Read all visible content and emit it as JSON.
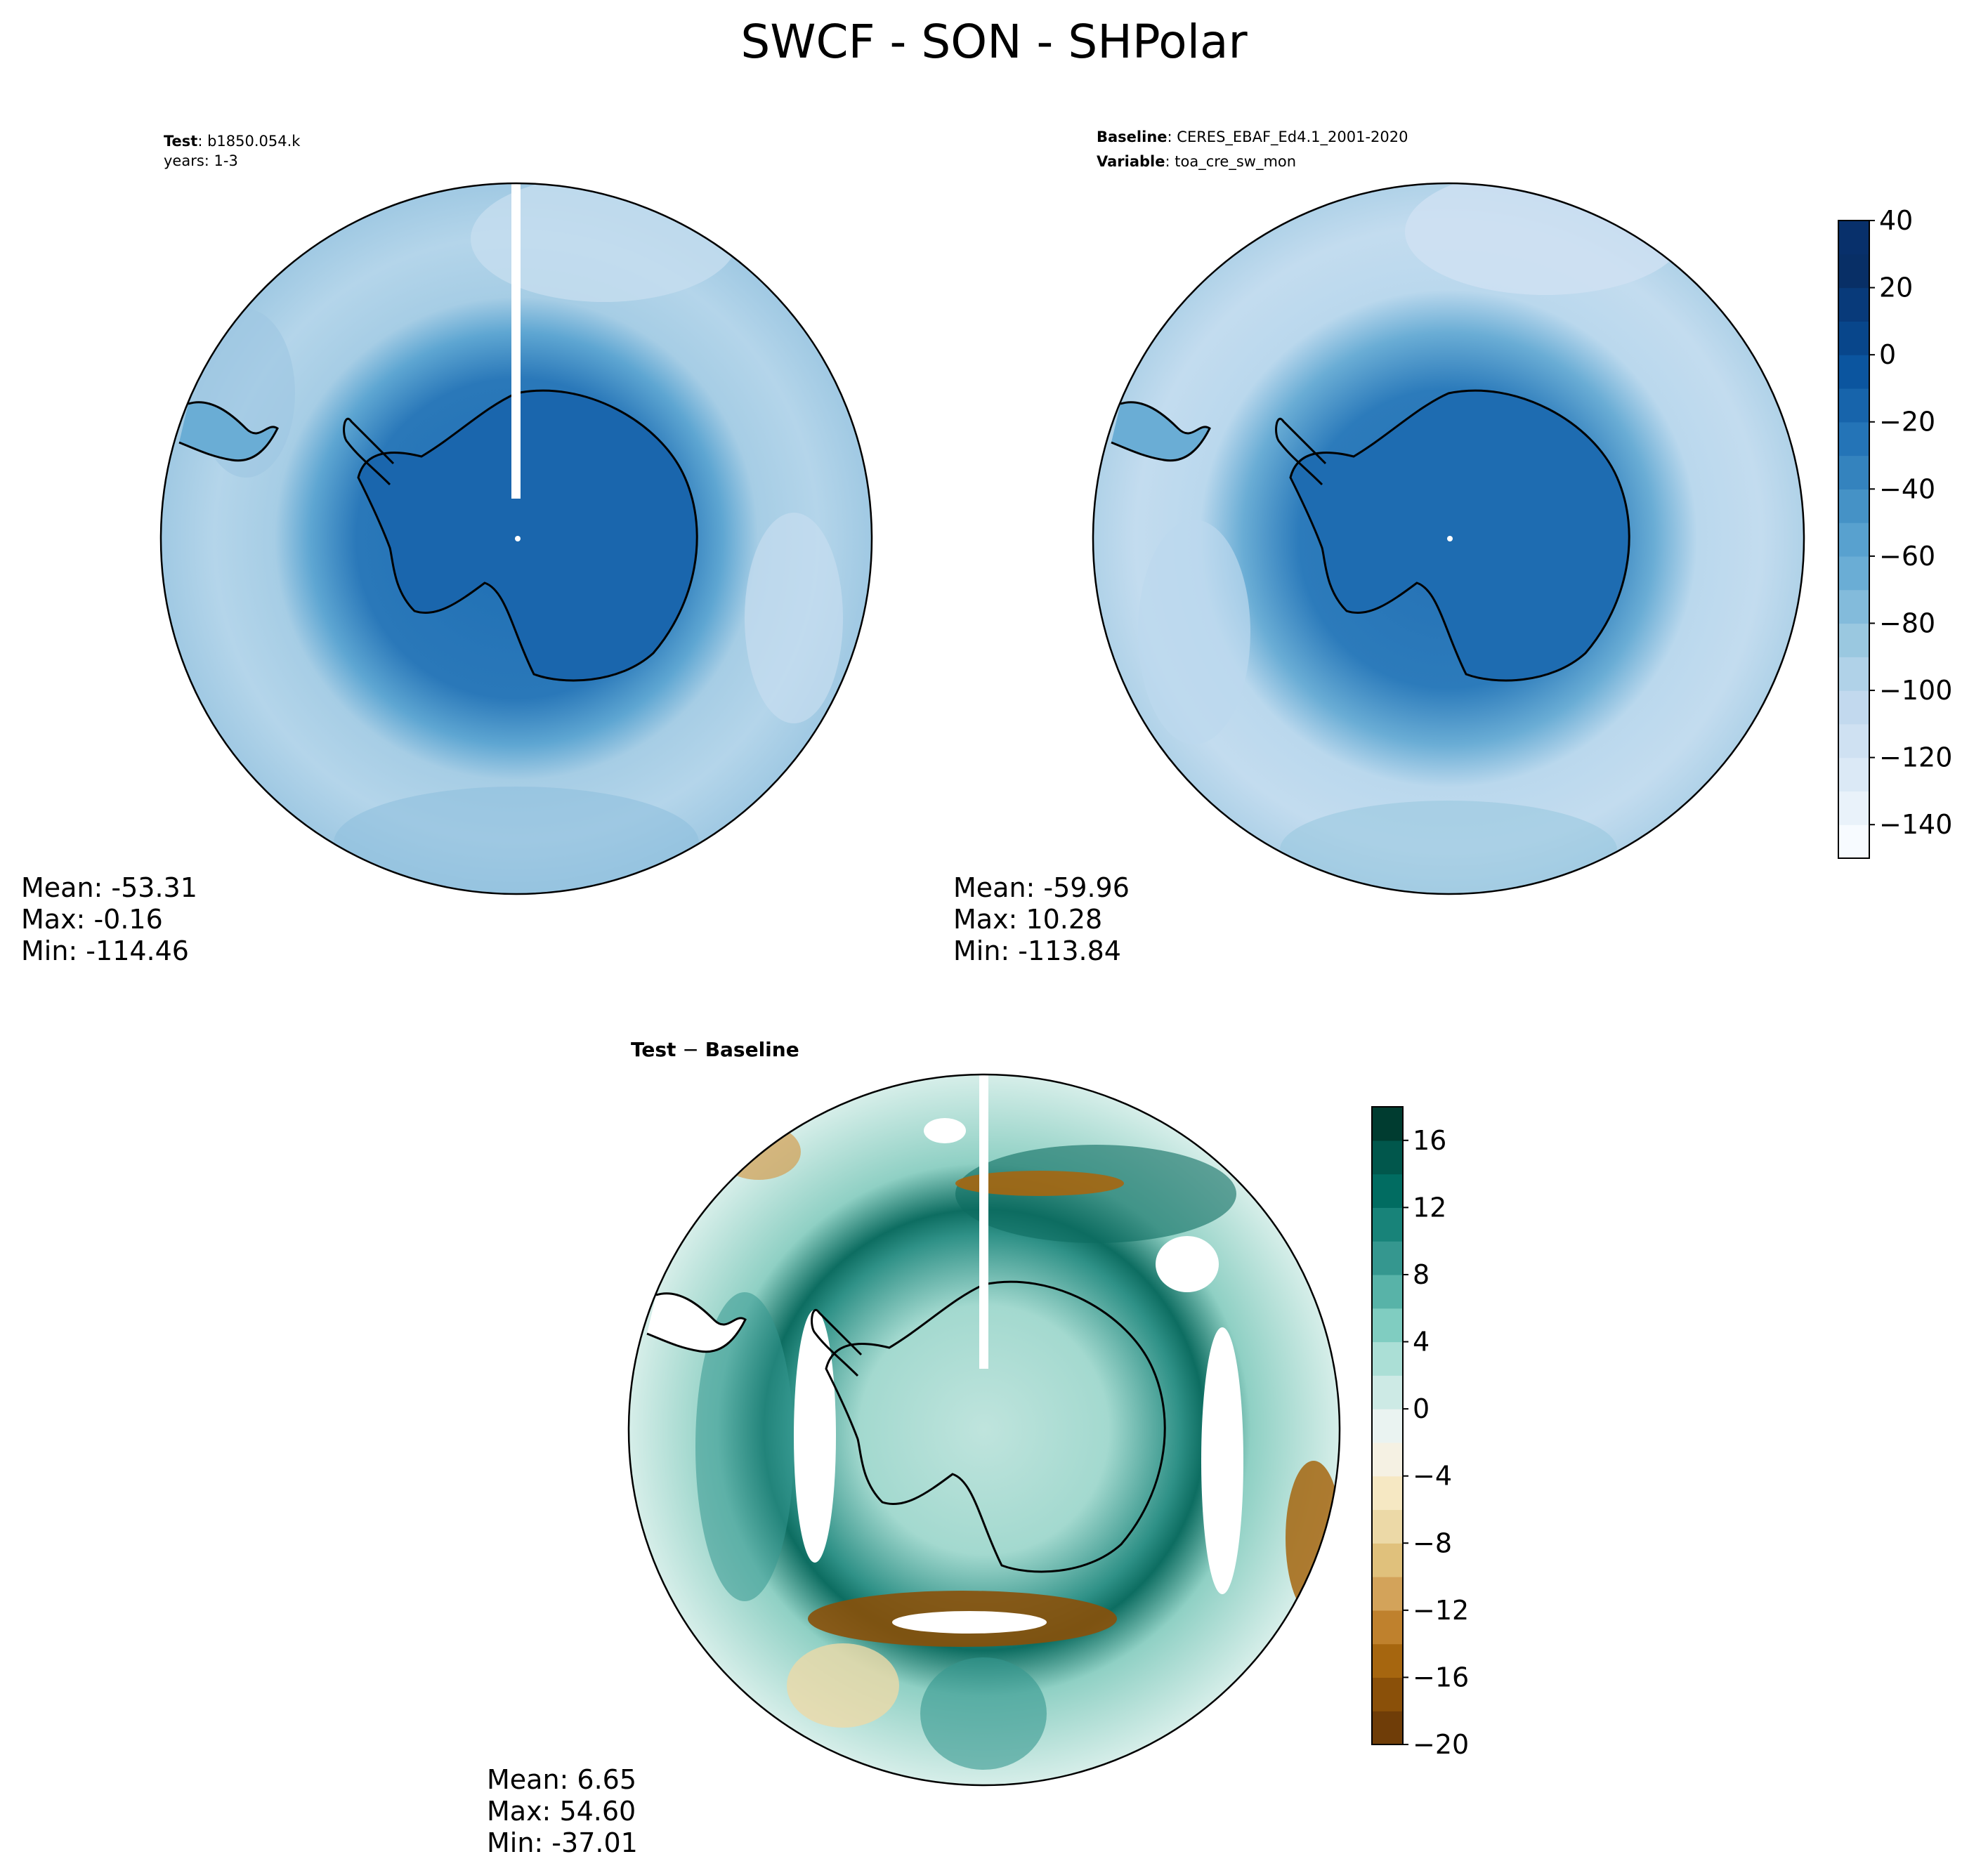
{
  "figure": {
    "title": "SWCF - SON - SHPolar"
  },
  "panels": {
    "test": {
      "label_bold": "Test",
      "label_sep": ": ",
      "name": "b1850.054.k",
      "years": "years: 1-3",
      "stats": {
        "mean": "Mean: -53.31",
        "max": "Max: -0.16",
        "min": "Min: -114.46"
      }
    },
    "baseline": {
      "label_bold": "Baseline",
      "label_sep": ": ",
      "name": "CERES_EBAF_Ed4.1_2001-2020",
      "var_bold": "Variable",
      "var_sep": ": ",
      "variable": "toa_cre_sw_mon",
      "stats": {
        "mean": "Mean: -59.96",
        "max": "Max: 10.28",
        "min": "Min: -113.84"
      }
    },
    "diff": {
      "label_a": "Test",
      "label_op": " − ",
      "label_b": "Baseline",
      "stats": {
        "mean": "Mean:  6.65",
        "max": "Max: 54.60",
        "min": "Min: -37.01"
      }
    }
  },
  "chart_data": [
    {
      "type": "heatmap",
      "projection": "south polar stereographic",
      "panel": "test",
      "colormap": "blues",
      "levels": [
        -150,
        -140,
        -130,
        -120,
        -110,
        -100,
        -90,
        -80,
        -70,
        -60,
        -50,
        -40,
        -30,
        -20,
        -10,
        0,
        10,
        20,
        30,
        40
      ],
      "regions": [
        {
          "region": "antarctic continent",
          "value": -10
        },
        {
          "region": "sea-ice ring",
          "value": -25
        },
        {
          "region": "southern ocean",
          "value": -70
        },
        {
          "region": "outer ocean",
          "value": -85
        }
      ]
    },
    {
      "type": "heatmap",
      "projection": "south polar stereographic",
      "panel": "baseline",
      "colormap": "blues",
      "levels": [
        -150,
        -140,
        -130,
        -120,
        -110,
        -100,
        -90,
        -80,
        -70,
        -60,
        -50,
        -40,
        -30,
        -20,
        -10,
        0,
        10,
        20,
        30,
        40
      ],
      "colorbar_ticks": [
        "40",
        "20",
        "0",
        "−20",
        "−40",
        "−60",
        "−80",
        "−100",
        "−120",
        "−140"
      ],
      "regions": [
        {
          "region": "antarctic continent",
          "value": -15
        },
        {
          "region": "sea-ice ring",
          "value": -30
        },
        {
          "region": "southern ocean",
          "value": -75
        },
        {
          "region": "outer ocean",
          "value": -90
        }
      ]
    },
    {
      "type": "heatmap",
      "projection": "south polar stereographic",
      "panel": "diff",
      "colormap": "brown-white-teal",
      "levels": [
        -20,
        -18,
        -16,
        -14,
        -12,
        -10,
        -8,
        -6,
        -4,
        -2,
        0,
        2,
        4,
        6,
        8,
        10,
        12,
        14,
        16,
        18
      ],
      "colorbar_ticks": [
        "16",
        "12",
        "8",
        "4",
        "0",
        "−4",
        "−8",
        "−12",
        "−16",
        "−20"
      ],
      "regions": [
        {
          "region": "antarctic continent",
          "value": 4
        },
        {
          "region": "sea-ice edge ring",
          "value": 16
        },
        {
          "region": "southern ocean",
          "value": 8
        },
        {
          "region": "negative bands",
          "value": -12
        }
      ]
    }
  ],
  "colors": {
    "blues": [
      "#f7fbff",
      "#e9f2fa",
      "#dbe9f6",
      "#cfe1f2",
      "#c2d9ee",
      "#b0d2e8",
      "#9ac8e0",
      "#83bbdb",
      "#6aadd5",
      "#58a1cf",
      "#4592c6",
      "#3483be",
      "#2474b7",
      "#1764ab",
      "#0b559f",
      "#08468b",
      "#083a7a",
      "#082f66",
      "#08306b"
    ],
    "brbg": [
      "#6f3d08",
      "#8a5009",
      "#a6660f",
      "#bf812d",
      "#d3a35a",
      "#e0c17c",
      "#ecd9a7",
      "#f6e8c3",
      "#f5f1e3",
      "#eaf3f1",
      "#cdeae5",
      "#abdfd6",
      "#80cdc1",
      "#58b3a8",
      "#35978f",
      "#188379",
      "#016c61",
      "#01574c",
      "#003c30"
    ]
  }
}
